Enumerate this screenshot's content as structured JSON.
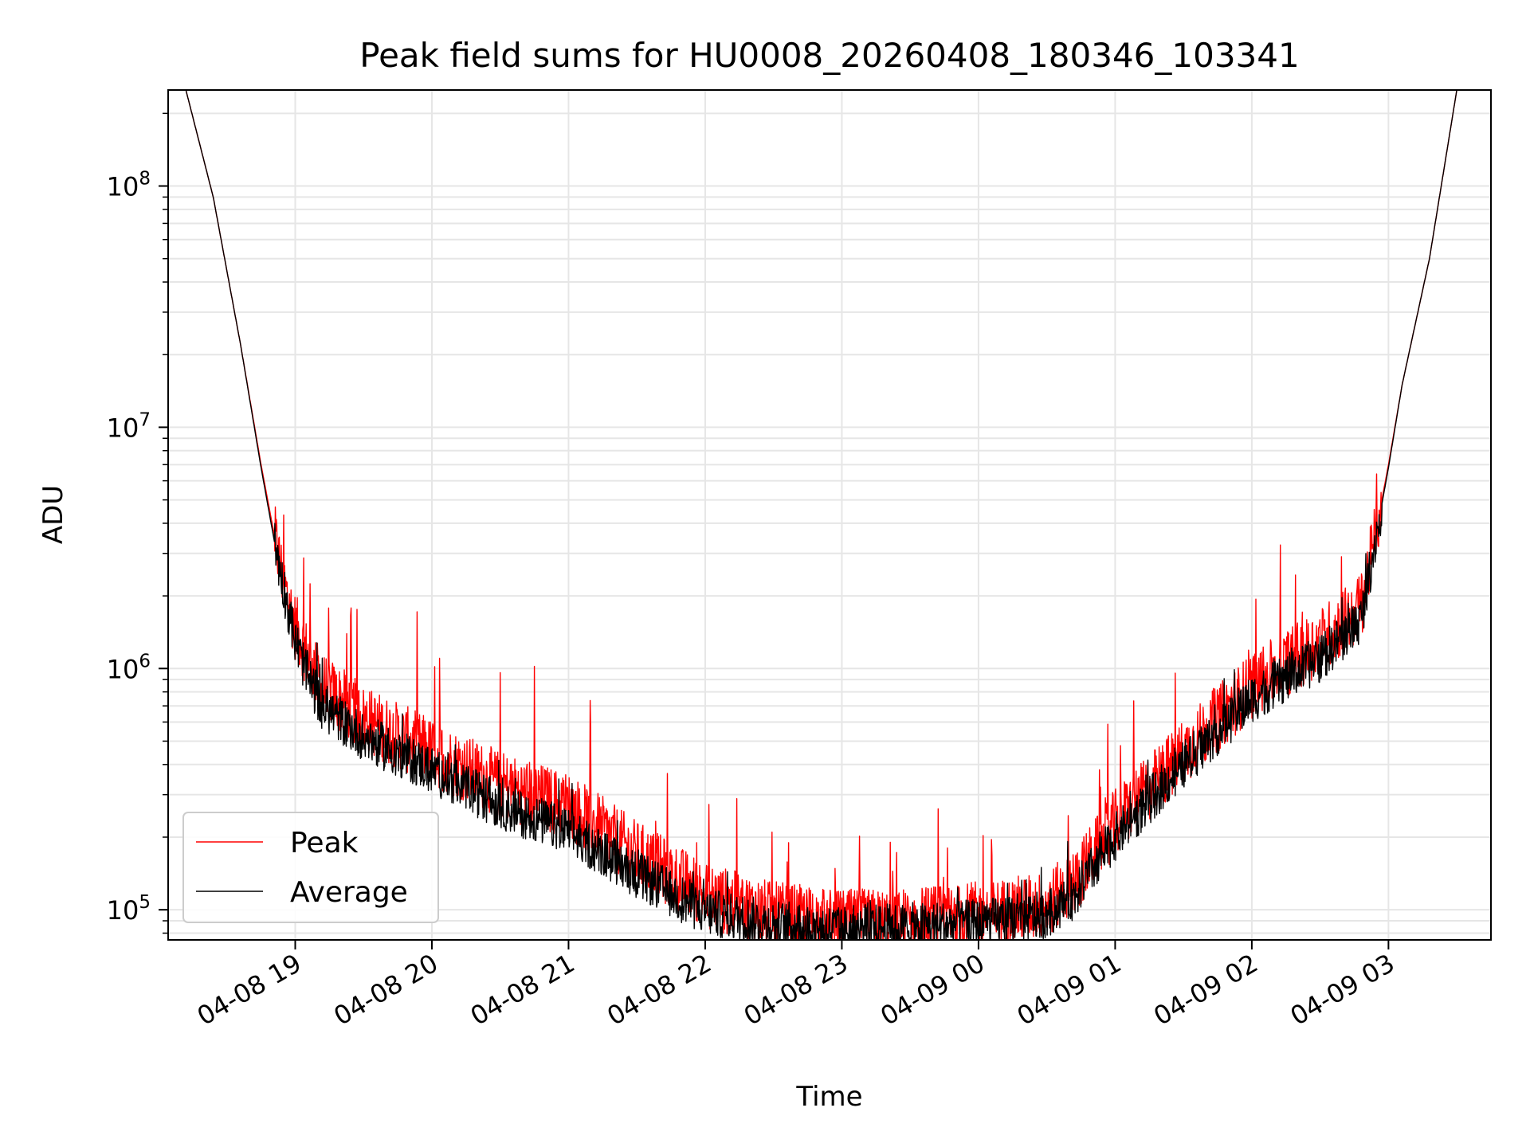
{
  "chart_data": {
    "type": "line",
    "title": "Peak field sums for HU0008_20260408_180346_103341",
    "xlabel": "Time",
    "ylabel": "ADU",
    "yscale": "log",
    "ylim": [
      75000,
      250000000
    ],
    "xlim_hours": [
      18.07,
      27.75
    ],
    "grid": true,
    "legend_position": "lower-left",
    "x_ticks": [
      {
        "hour": 19,
        "label": "04-08 19"
      },
      {
        "hour": 20,
        "label": "04-08 20"
      },
      {
        "hour": 21,
        "label": "04-08 21"
      },
      {
        "hour": 22,
        "label": "04-08 22"
      },
      {
        "hour": 23,
        "label": "04-08 23"
      },
      {
        "hour": 24,
        "label": "04-09 00"
      },
      {
        "hour": 25,
        "label": "04-09 01"
      },
      {
        "hour": 26,
        "label": "04-09 02"
      },
      {
        "hour": 27,
        "label": "04-09 03"
      }
    ],
    "y_ticks": [
      {
        "exp": 5,
        "base": "10",
        "sup": "5"
      },
      {
        "exp": 6,
        "base": "10",
        "sup": "6"
      },
      {
        "exp": 7,
        "base": "10",
        "sup": "7"
      },
      {
        "exp": 8,
        "base": "10",
        "sup": "8"
      }
    ],
    "x_hours": [
      18.2,
      18.4,
      18.6,
      18.75,
      18.85,
      18.92,
      19.0,
      19.1,
      19.2,
      19.5,
      20.0,
      20.5,
      21.0,
      21.5,
      22.0,
      22.5,
      23.0,
      23.5,
      24.0,
      24.5,
      24.7,
      25.0,
      25.5,
      26.0,
      26.5,
      26.8,
      26.9,
      27.0,
      27.1,
      27.3,
      27.5
    ],
    "series": [
      {
        "name": "Peak",
        "color": "#ff0000",
        "noise": 0.28,
        "values": [
          250000000,
          90000000,
          22000000,
          7000000,
          3500000,
          2200000,
          1500000,
          1100000,
          850000,
          620000,
          450000,
          330000,
          270000,
          170000,
          115000,
          95000,
          88000,
          90000,
          95000,
          105000,
          130000,
          230000,
          450000,
          850000,
          1300000,
          1800000,
          3500000,
          7000000,
          15000000,
          50000000,
          250000000
        ]
      },
      {
        "name": "Average",
        "color": "#000000",
        "noise": 0.2,
        "values": [
          250000000,
          90000000,
          22000000,
          6800000,
          3300000,
          2100000,
          1300000,
          900000,
          700000,
          520000,
          380000,
          270000,
          210000,
          140000,
          98000,
          87000,
          83000,
          85000,
          88000,
          95000,
          115000,
          200000,
          400000,
          750000,
          1100000,
          1600000,
          3300000,
          6800000,
          15000000,
          50000000,
          250000000
        ]
      }
    ]
  }
}
